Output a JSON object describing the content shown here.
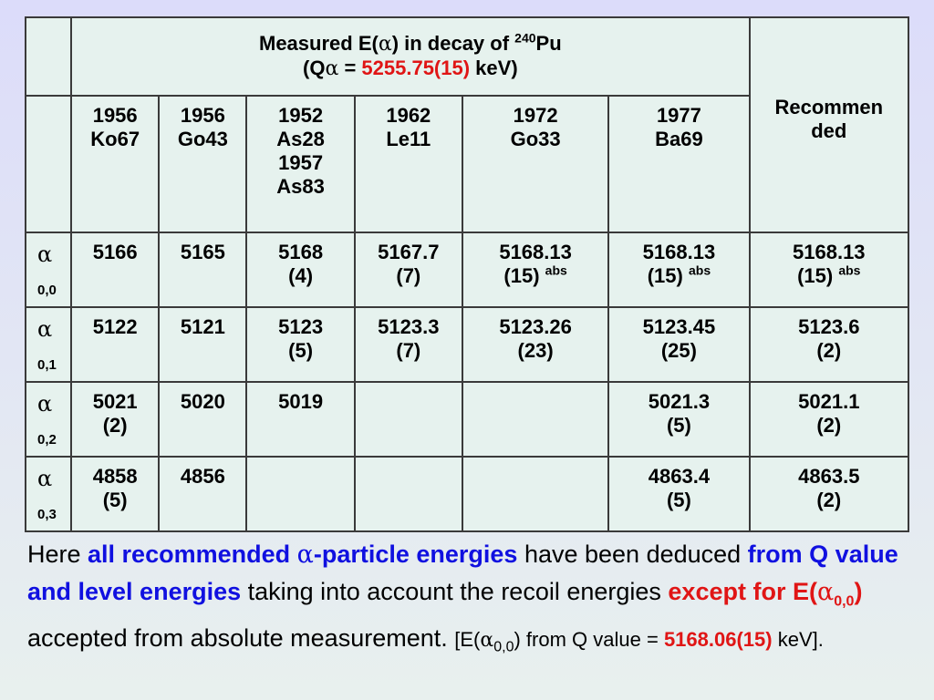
{
  "header": {
    "line1_pre": "Measured E(",
    "alpha": "α",
    "line1_mid": ") in decay of ",
    "mass": "240",
    "element": "Pu",
    "q_pre": "(Q",
    "q_eq": " = ",
    "q_value": "5255.75(15)",
    "q_unit": " keV)",
    "recommended": "Recommen ded"
  },
  "sources": [
    [
      "1956",
      "Ko67"
    ],
    [
      "1956",
      "Go43"
    ],
    [
      "1952",
      "As28",
      "1957",
      "As83"
    ],
    [
      "1962",
      "Le11"
    ],
    [
      "1972",
      "Go33"
    ],
    [
      "1977",
      "Ba69"
    ]
  ],
  "rows": [
    {
      "alpha": "α",
      "sub": "0,0",
      "cells": [
        [
          "5166"
        ],
        [
          "5165"
        ],
        [
          "5168",
          "(4)"
        ],
        [
          "5167.7",
          "(7)"
        ],
        [
          "5168.13",
          "(15)"
        ],
        [
          "5168.13",
          "(15)"
        ]
      ],
      "sup": "abs",
      "rec": [
        "5168.13",
        "(15)"
      ]
    },
    {
      "alpha": "α",
      "sub": "0,1",
      "cells": [
        [
          "5122"
        ],
        [
          "5121"
        ],
        [
          "5123",
          "(5)"
        ],
        [
          "5123.3",
          "(7)"
        ],
        [
          "5123.26",
          "(23)"
        ],
        [
          "5123.45",
          "(25)"
        ]
      ],
      "rec": [
        "5123.6",
        "(2)"
      ]
    },
    {
      "alpha": "α",
      "sub": "0,2",
      "cells": [
        [
          "5021",
          "(2)"
        ],
        [
          "5020"
        ],
        [
          "5019"
        ],
        [
          ""
        ],
        [
          ""
        ],
        [
          "5021.3",
          "(5)"
        ]
      ],
      "rec": [
        "5021.1",
        "(2)"
      ]
    },
    {
      "alpha": "α",
      "sub": "0,3",
      "cells": [
        [
          "4858",
          "(5)"
        ],
        [
          "4856"
        ],
        [
          ""
        ],
        [
          ""
        ],
        [
          ""
        ],
        [
          "4863.4",
          "(5)"
        ]
      ],
      "rec": [
        "4863.5",
        "(2)"
      ]
    }
  ],
  "note": {
    "t1": "Here ",
    "b1": "all recommended ",
    "b1_alpha": "α",
    "b1_end": "-particle energies",
    "t2": " have been deduced ",
    "b2": "from Q value and level energies",
    "t3": " taking into account the recoil energies ",
    "r1": "except for E(",
    "r1_alpha": "α",
    "r1_sub": "0,0",
    "r1_end": ")",
    "t4": " accepted from absolute measurement. ",
    "s1": "[E(",
    "s1_alpha": "α",
    "s1_sub": "0,0",
    "s1_mid": ") from Q value = ",
    "s1_value": "5168.06(15)",
    "s1_end": " keV]."
  },
  "colors": {
    "accent_red": "#e01515",
    "accent_blue": "#1010e0",
    "table_bg": "#e6f2ee"
  }
}
